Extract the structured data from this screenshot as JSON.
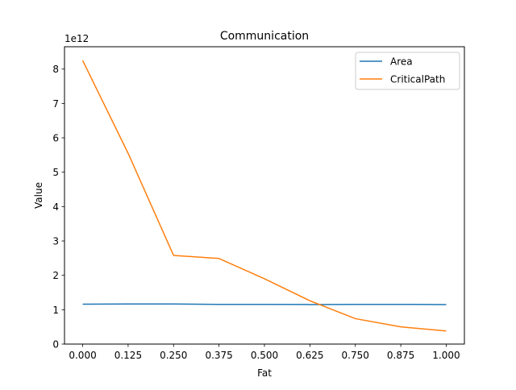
{
  "chart_data": {
    "type": "line",
    "title": "Communication",
    "xlabel": "Fat",
    "ylabel": "Value",
    "y_offset_label": "1e12",
    "x": [
      0.0,
      0.125,
      0.25,
      0.375,
      0.5,
      0.625,
      0.75,
      0.875,
      1.0
    ],
    "series": [
      {
        "name": "Area",
        "color": "#1f77b4",
        "values": [
          1160000000000.0,
          1165000000000.0,
          1165000000000.0,
          1155000000000.0,
          1155000000000.0,
          1150000000000.0,
          1155000000000.0,
          1155000000000.0,
          1150000000000.0
        ]
      },
      {
        "name": "CriticalPath",
        "color": "#ff7f0e",
        "values": [
          8250000000000.0,
          5550000000000.0,
          2580000000000.0,
          2490000000000.0,
          1900000000000.0,
          1260000000000.0,
          740000000000.0,
          500000000000.0,
          380000000000.0
        ]
      }
    ],
    "xlim": [
      -0.05,
      1.05
    ],
    "ylim": [
      0,
      8650000000000.0
    ],
    "x_ticks": [
      0.0,
      0.125,
      0.25,
      0.375,
      0.5,
      0.625,
      0.75,
      0.875,
      1.0
    ],
    "x_tick_labels": [
      "0.000",
      "0.125",
      "0.250",
      "0.375",
      "0.500",
      "0.625",
      "0.750",
      "0.875",
      "1.000"
    ],
    "y_ticks": [
      0,
      1000000000000.0,
      2000000000000.0,
      3000000000000.0,
      4000000000000.0,
      5000000000000.0,
      6000000000000.0,
      7000000000000.0,
      8000000000000.0
    ],
    "y_tick_labels": [
      "0",
      "1",
      "2",
      "3",
      "4",
      "5",
      "6",
      "7",
      "8"
    ],
    "grid": false,
    "legend_position": "top-right"
  }
}
